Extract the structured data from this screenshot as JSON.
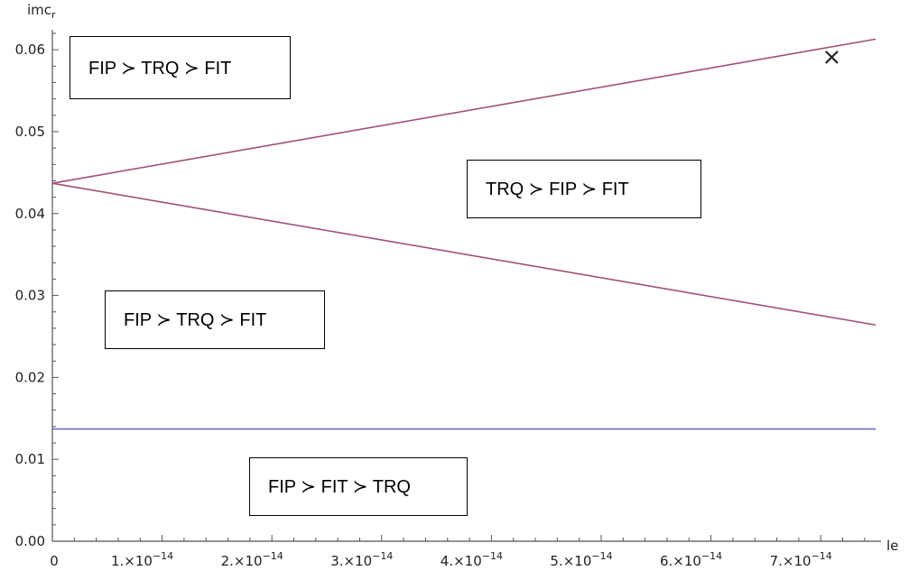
{
  "chart_data": {
    "type": "line",
    "xlabel": "le",
    "ylabel": "imc",
    "ylabel_sub": "r",
    "xlim": [
      0,
      7.5e-14
    ],
    "ylim": [
      0,
      0.062
    ],
    "x_ticks": [
      {
        "value": 0,
        "mantissa": "0",
        "exp": ""
      },
      {
        "value": 1e-14,
        "mantissa": "1.×10",
        "exp": "−14"
      },
      {
        "value": 2e-14,
        "mantissa": "2.×10",
        "exp": "−14"
      },
      {
        "value": 3e-14,
        "mantissa": "3.×10",
        "exp": "−14"
      },
      {
        "value": 4e-14,
        "mantissa": "4.×10",
        "exp": "−14"
      },
      {
        "value": 5e-14,
        "mantissa": "5.×10",
        "exp": "−14"
      },
      {
        "value": 6e-14,
        "mantissa": "6.×10",
        "exp": "−14"
      },
      {
        "value": 7e-14,
        "mantissa": "7.×10",
        "exp": "−14"
      }
    ],
    "y_ticks": [
      {
        "value": 0,
        "label": "0.00"
      },
      {
        "value": 0.01,
        "label": "0.01"
      },
      {
        "value": 0.02,
        "label": "0.02"
      },
      {
        "value": 0.03,
        "label": "0.03"
      },
      {
        "value": 0.04,
        "label": "0.04"
      },
      {
        "value": 0.05,
        "label": "0.05"
      },
      {
        "value": 0.06,
        "label": "0.06"
      }
    ],
    "series": [
      {
        "color": "#a0507a",
        "x": [
          0,
          7.5e-14
        ],
        "y": [
          0.0437,
          0.0613
        ]
      },
      {
        "color": "#a0507a",
        "x": [
          0,
          7.5e-14
        ],
        "y": [
          0.0437,
          0.0264
        ]
      },
      {
        "color": "#6a6fc8",
        "x": [
          0,
          7.5e-14
        ],
        "y": [
          0.0137,
          0.0137
        ]
      }
    ],
    "marker": {
      "symbol": "×",
      "x": 7.1e-14,
      "y": 0.0591
    },
    "annotations": [
      "FIP ≻ TRQ ≻ FIT",
      "TRQ ≻ FIP ≻ FIT",
      "FIP ≻ TRQ ≻ FIT",
      "FIP ≻ FIT ≻ TRQ"
    ]
  }
}
